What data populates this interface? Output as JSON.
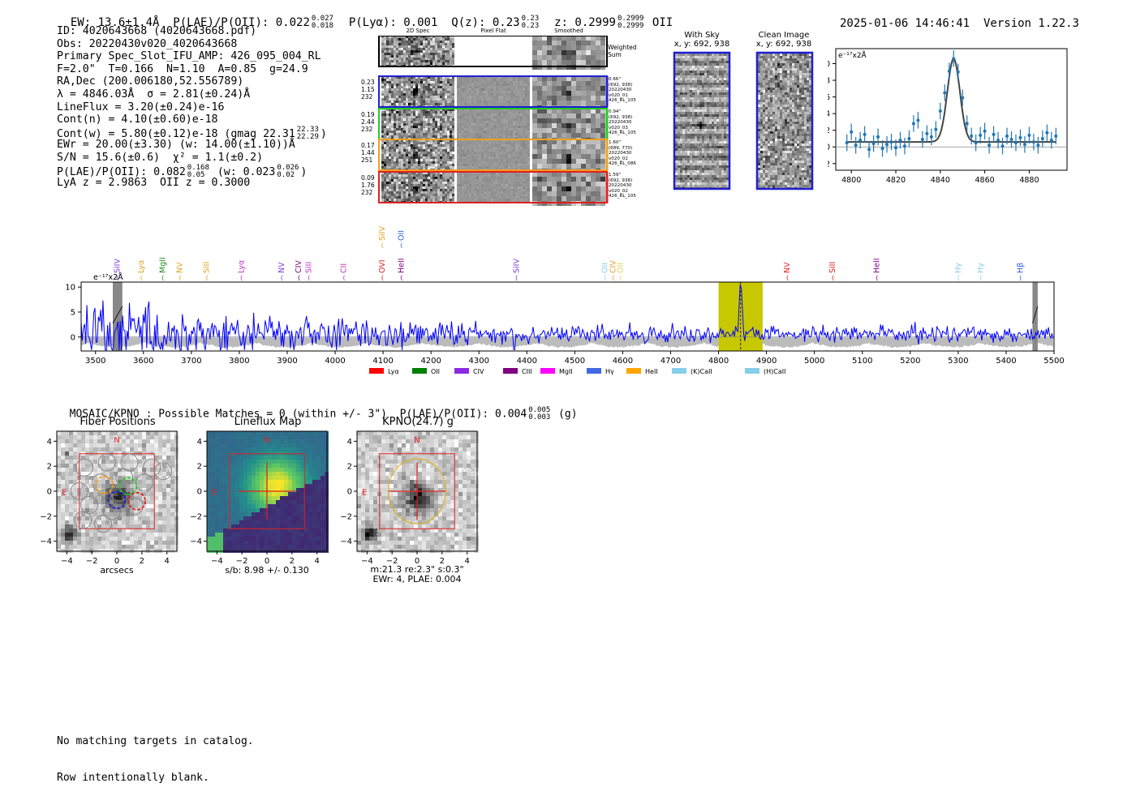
{
  "header": {
    "ew_label": "EW: 13.6±1.4Å",
    "plae_label": "P(LAE)/P(OII): 0.022",
    "plae_hi": "0.027",
    "plae_lo": "0.018",
    "plya_label": "P(Lyα): 0.001",
    "qz_label": "Q(z): 0.23",
    "qz_hi": "0.23",
    "qz_lo": "0.23",
    "z_label": "z: 0.2999",
    "z_hi": "0.2999",
    "z_lo": "0.2999",
    "z_line": "OII",
    "datetime": "2025-01-06 14:46:41",
    "version": "Version 1.22.3"
  },
  "info": {
    "id": "ID: 4020643668 (4020643668.pdf)",
    "obs": "Obs: 20220430v020_4020643668",
    "primary": "Primary Spec_Slot_IFU_AMP: 426_095_004_RL",
    "params": "F=2.0\"  T=0.166  N=1.10  A=0.85  g=24.9",
    "radec": "RA,Dec (200.006180,52.556789)",
    "lambda": "λ = 4846.03Å  σ = 2.81(±0.24)Å",
    "lineflux": "LineFlux = 3.20(±0.24)e-16",
    "contn": "Cont(n) = 4.10(±0.60)e-18",
    "contw": "Cont(w) = 5.80(±0.12)e-18 (gmag 22.31",
    "contw_hi": "22.33",
    "contw_lo": "22.29",
    "contw_end": ")",
    "ewr": "EWr = 20.00(±3.30) (w: 14.00(±1.10))Å",
    "sn": "S/N = 15.6(±0.6)  χ² = 1.1(±0.2)",
    "plae2": "P(LAE)/P(OII): 0.082",
    "plae2_hi": "0.168",
    "plae2_lo": "0.05",
    "plae2_w": "(w: 0.023",
    "plae2_w_hi": "0.026",
    "plae2_w_lo": "0.02",
    "plae2_end": ")",
    "lya_z": "LyA z = 2.9863  OII z = 0.3000"
  },
  "stamps": {
    "col_titles": [
      "2D Spec",
      "Pixel Flat",
      "Smoothed"
    ],
    "weighted_label": "Weighted Sum",
    "rows": [
      {
        "nums": [
          "0.23",
          "1.15",
          "232"
        ],
        "side": [
          "0.66\"",
          "(692, 938)",
          "20220430",
          "v020_01",
          "426_RL_105"
        ],
        "color": "#1f1fd0"
      },
      {
        "nums": [
          "0.19",
          "2.44",
          "232"
        ],
        "side": [
          "0.94\"",
          "(692, 938)",
          "20220430",
          "v020_03",
          "426_RL_105"
        ],
        "color": "#22cc22"
      },
      {
        "nums": [
          "0.17",
          "1.44",
          "251"
        ],
        "side": [
          "1.60\"",
          "(689, 770)",
          "20220430",
          "v020_02",
          "426_RL_086"
        ],
        "color": "#f0a020"
      },
      {
        "nums": [
          "0.09",
          "1.76",
          "232"
        ],
        "side": [
          "1.59\"",
          "(692, 938)",
          "20220430",
          "v020_02",
          "426_RL_105"
        ],
        "color": "#e02020"
      }
    ]
  },
  "sky": {
    "with_sky_title": "With Sky",
    "with_sky_sub": "x, y: 692, 938",
    "clean_title": "Clean Image",
    "clean_sub": "x, y: 692, 938"
  },
  "chart_data": [
    {
      "type": "scatter",
      "title": "",
      "ylabel": "e⁻¹⁷x2Å",
      "xlabel": "",
      "xlim": [
        4793,
        4897
      ],
      "ylim": [
        -2.8,
        11.8
      ],
      "xticks": [
        4800,
        4820,
        4840,
        4860,
        4880
      ],
      "yticks": [
        -2,
        0,
        2,
        4,
        6,
        8,
        10
      ],
      "x": [
        4798,
        4800,
        4802,
        4804,
        4806,
        4808,
        4810,
        4812,
        4814,
        4816,
        4818,
        4820,
        4822,
        4824,
        4826,
        4828,
        4830,
        4832,
        4834,
        4836,
        4838,
        4840,
        4842,
        4844,
        4846,
        4848,
        4850,
        4852,
        4854,
        4856,
        4858,
        4860,
        4862,
        4864,
        4866,
        4868,
        4870,
        4872,
        4874,
        4876,
        4878,
        4880,
        4882,
        4884,
        4886,
        4888,
        4890,
        4892
      ],
      "y": [
        0.5,
        1.8,
        0.2,
        0.8,
        1.5,
        -0.3,
        0.4,
        1.2,
        -0.2,
        0.3,
        0.6,
        -0.1,
        0.8,
        0.1,
        1.0,
        2.8,
        3.2,
        0.9,
        1.6,
        1.2,
        2.1,
        4.3,
        6.5,
        9.1,
        10.6,
        9.0,
        5.9,
        2.8,
        1.3,
        0.5,
        1.4,
        1.9,
        0.2,
        1.5,
        0.8,
        0.1,
        1.3,
        0.9,
        0.5,
        1.1,
        0.3,
        1.4,
        0.6,
        0.2,
        1.0,
        1.7,
        0.8,
        1.3
      ],
      "err": 1.0,
      "fit": {
        "center": 4846.0,
        "sigma": 2.81,
        "amplitude": 10.0,
        "baseline": 0.6
      }
    },
    {
      "type": "line",
      "title": "",
      "ylabel": "e⁻¹⁷x2Å",
      "xlim": [
        3470,
        5500
      ],
      "ylim": [
        -2.8,
        11
      ],
      "xticks": [
        3500,
        3600,
        3700,
        3800,
        3900,
        4000,
        4100,
        4200,
        4300,
        4400,
        4500,
        4600,
        4700,
        4800,
        4900,
        5000,
        5100,
        5200,
        5300,
        5400,
        5500
      ],
      "yticks": [
        0,
        5,
        10
      ],
      "highlight_range": [
        4800,
        4892
      ],
      "line_center": 4846,
      "masked": [
        [
          3536,
          3556
        ],
        [
          5455,
          5466
        ]
      ],
      "series": [
        {
          "name": "flux",
          "noise_amp_start": 5.5,
          "noise_amp_end": 1.5,
          "color": "#0000ff"
        }
      ],
      "line_labels": [
        {
          "name": "SiIV",
          "x": 3545,
          "color": "#7a3bd6",
          "row": "top"
        },
        {
          "name": "Lyα",
          "x": 3595,
          "color": "#e0a020",
          "row": "top"
        },
        {
          "name": "MgII",
          "x": 3640,
          "color": "#228b22",
          "row": "top"
        },
        {
          "name": "NV",
          "x": 3676,
          "color": "#e0a020",
          "row": "top"
        },
        {
          "name": "SiII",
          "x": 3732,
          "color": "#e0a020",
          "row": "top"
        },
        {
          "name": "Lyα",
          "x": 3804,
          "color": "#c030c0",
          "row": "top"
        },
        {
          "name": "NV",
          "x": 3888,
          "color": "#7a3bd6",
          "row": "top"
        },
        {
          "name": "CIV",
          "x": 3924,
          "color": "#800080",
          "row": "top"
        },
        {
          "name": "SiII",
          "x": 3945,
          "color": "#c030c0",
          "row": "top"
        },
        {
          "name": "CII",
          "x": 4018,
          "color": "#c030c0",
          "row": "top"
        },
        {
          "name": "OVI",
          "x": 4098,
          "color": "#e02020",
          "row": "top"
        },
        {
          "name": "SiIV",
          "x": 4098,
          "color": "#e0a020",
          "row": "high"
        },
        {
          "name": "OII",
          "x": 4138,
          "color": "#3060e0",
          "row": "high"
        },
        {
          "name": "HeII",
          "x": 4138,
          "color": "#800080",
          "row": "top"
        },
        {
          "name": "SiIV",
          "x": 4378,
          "color": "#7a3bd6",
          "row": "top"
        },
        {
          "name": "OII",
          "x": 4563,
          "color": "#87ceeb",
          "row": "top"
        },
        {
          "name": "CIV",
          "x": 4580,
          "color": "#e0a020",
          "row": "top"
        },
        {
          "name": "OII",
          "x": 4595,
          "color": "#e0d060",
          "row": "top"
        },
        {
          "name": "NV",
          "x": 4943,
          "color": "#e02020",
          "row": "top"
        },
        {
          "name": "SiII",
          "x": 5038,
          "color": "#e02020",
          "row": "top"
        },
        {
          "name": "HeII",
          "x": 5130,
          "color": "#800080",
          "row": "top"
        },
        {
          "name": "Hγ",
          "x": 5300,
          "color": "#87ceeb",
          "row": "top"
        },
        {
          "name": "Hγ",
          "x": 5347,
          "color": "#87ceeb",
          "row": "top"
        },
        {
          "name": "Hβ",
          "x": 5430,
          "color": "#3060e0",
          "row": "top"
        }
      ],
      "legend": [
        {
          "label": "Lyα",
          "color": "#ff0000"
        },
        {
          "label": "OII",
          "color": "#008000"
        },
        {
          "label": "CIV",
          "color": "#8a2be2"
        },
        {
          "label": "CIII",
          "color": "#800080"
        },
        {
          "label": "MgII",
          "color": "#ff00ff"
        },
        {
          "label": "Hγ",
          "color": "#4169e1"
        },
        {
          "label": "HeII",
          "color": "#ffa500"
        },
        {
          "label": "(K)CaII",
          "color": "#87ceeb"
        },
        {
          "label": "(H)CaII",
          "color": "#87ceeb"
        }
      ]
    },
    {
      "type": "heatmap",
      "title": "Fiber Positions",
      "xlabel": "arcsecs",
      "xlim": [
        -4.8,
        4.8
      ],
      "ylim": [
        -4.8,
        4.8
      ],
      "ticks": [
        -4,
        -2,
        0,
        2,
        4
      ],
      "compass_n": "N",
      "compass_e": "E"
    },
    {
      "type": "heatmap",
      "title": "Lineflux Map",
      "xlabel": "s/b: 8.98 +/- 0.130",
      "xlim": [
        -4.8,
        4.8
      ],
      "ylim": [
        -4.8,
        4.8
      ],
      "ticks": [
        -4,
        -2,
        0,
        2,
        4
      ],
      "compass_n": "N",
      "compass_e": "E"
    },
    {
      "type": "heatmap",
      "title": "KPNO(24.7) g",
      "xlabel": "m:21.3  re:2.3\"  s:0.3\"",
      "xlabel2": "EWr: 4, PLAE: 0.004",
      "xlim": [
        -4.8,
        4.8
      ],
      "ylim": [
        -4.8,
        4.8
      ],
      "ticks": [
        -4,
        -2,
        0,
        2,
        4
      ],
      "compass_n": "N",
      "compass_e": "E"
    }
  ],
  "catalog": {
    "line": "MOSAIC/KPNO : Possible Matches = 0 (within +/- 3\")  P(LAE)/P(OII): 0.004",
    "hi": "0.005",
    "lo": "0.003",
    "band": "(g)"
  },
  "footer": {
    "line1": "No matching targets in catalog.",
    "line2": "Row intentionally blank."
  },
  "colors": {
    "blue": "#1f1fd0",
    "green": "#22cc22",
    "orange": "#f0a020",
    "red": "#e02020",
    "spec_line": "#0000ff",
    "highlight": "#c8c800",
    "errbar": "#1f77b4"
  }
}
